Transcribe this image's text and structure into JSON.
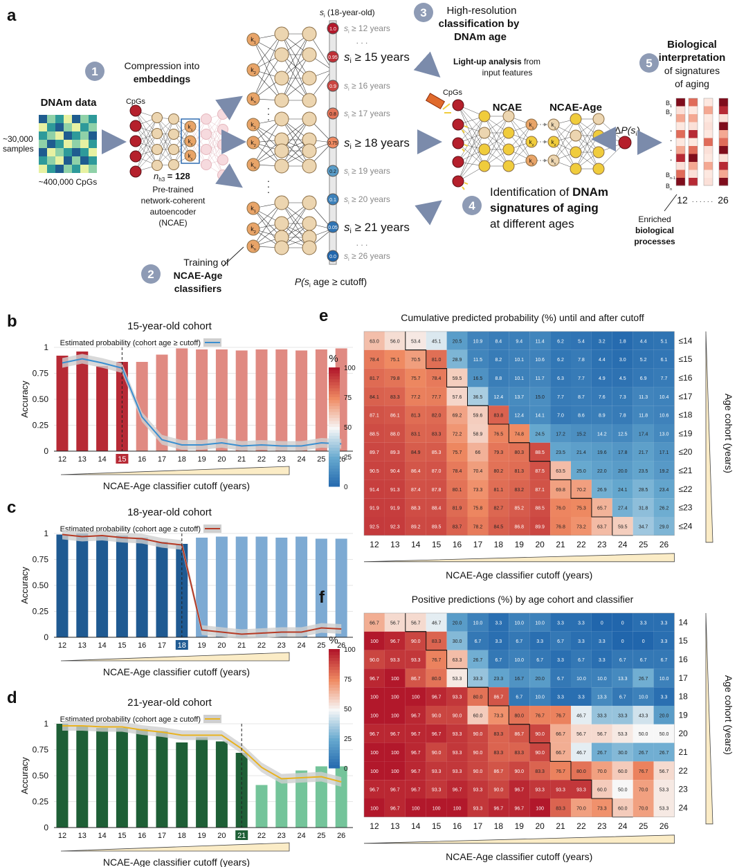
{
  "panel_letters": [
    "a",
    "b",
    "c",
    "d",
    "e",
    "f"
  ],
  "colors": {
    "step_circle": "#8e9bb5",
    "arrow": "#7b8bab",
    "neuron_fill": "#ecd5b0",
    "neuron_stroke": "#8a6d45",
    "emb_fill": "#e8a468",
    "cpg_fill": "#b5202c",
    "lit": "#f0cc3c",
    "red": "#b72a35",
    "red_light": "#e08a82",
    "blue": "#1f5a92",
    "blue_light": "#7daad3",
    "green": "#1e5f36",
    "green_light": "#74c49a",
    "line_b": "#3a8fd0",
    "line_c": "#b53a25",
    "line_d": "#e8b21f",
    "band": "#cfcfcf"
  },
  "panel_a": {
    "dnam_title": "DNAm data",
    "samples": "~30,000",
    "samples2": "samples",
    "cpgs": "~400,000 CpGs",
    "step1": "1",
    "step1_l1": "Compression into",
    "step1_l2": "embeddings",
    "cpgs_label": "CpGs",
    "nh3": "n",
    "nh3_sub": "h3",
    "nh3_val": " = 128",
    "pretrained": [
      "Pre-trained",
      "network-coherent",
      "autoencoder"
    ],
    "ncae_paren": "(NCAE)",
    "step2": "2",
    "step2_l1": "Training of",
    "step2_l2": "NCAE-Age",
    "step2_l3": "classifiers",
    "si_header": "s",
    "si_header_rest": " (18-year-old)",
    "k_labels": [
      "k",
      "k",
      "k"
    ],
    "k_subs": [
      "1",
      "2",
      "n"
    ],
    "cutoffs": [
      {
        "label": "≥ 12 years",
        "prob": "1.0",
        "big": false,
        "show_prob": true
      },
      {
        "label": "≥ 15 years",
        "prob": "0.95",
        "big": true,
        "show_prob": true
      },
      {
        "label": "≥ 16 years",
        "prob": "0.9",
        "big": false,
        "show_prob": true
      },
      {
        "label": "≥ 17 years",
        "prob": "0.8",
        "big": false,
        "show_prob": true
      },
      {
        "label": "≥ 18 years",
        "prob": "0.75",
        "big": true,
        "show_prob": true
      },
      {
        "label": "≥ 19 years",
        "prob": "0.2",
        "big": false,
        "show_prob": true
      },
      {
        "label": "≥ 20 years",
        "prob": "0.1",
        "big": false,
        "show_prob": true
      },
      {
        "label": "≥ 21 years",
        "prob": "0.05",
        "big": true,
        "show_prob": true
      },
      {
        "label": "≥ 26 years",
        "prob": "0.0",
        "big": false,
        "show_prob": true
      }
    ],
    "p_formula": "P(s",
    "p_formula_rest": " age ≥ cutoff)",
    "step3": "3",
    "step3_l1": "High-resolution",
    "step3_l2": "classification by",
    "step3_l3": "DNAm age",
    "lightup_bold": "Light-up analysis",
    "lightup_rest": " from",
    "lightup_l2": "input features",
    "ncae": "NCAE",
    "ncae_age": "NCAE-Age",
    "delta": "ΔP(s",
    "step4": "4",
    "step4_l1": "Identification of ",
    "step4_l1b": "DNAm",
    "step4_l2": "signatures of aging",
    "step4_l3": "at different ages",
    "step5": "5",
    "step5_l1": "Biological",
    "step5_l2": "interpretation",
    "step5_l3": "of signatures",
    "step5_l4": "of aging",
    "b_labels": [
      "B",
      "B",
      "B",
      "B"
    ],
    "b_subs": [
      "1",
      "2",
      "n-1",
      "n"
    ],
    "dots": "· · · · · ·",
    "age_lo": "12",
    "age_hi": "26",
    "enriched": [
      "Enriched",
      "biological",
      "processes"
    ]
  },
  "chart_data": [
    {
      "type": "bar",
      "panel": "b",
      "title": "15-year-old cohort",
      "legend": "Estimated probability (cohort age ≥ cutoff)",
      "ylabel": "Accuracy",
      "xlabel": "NCAE-Age classifier cutoff (years)",
      "categories": [
        "12",
        "13",
        "14",
        "15",
        "16",
        "17",
        "18",
        "19",
        "20",
        "21",
        "22",
        "23",
        "24",
        "25",
        "26"
      ],
      "highlight": "15",
      "ylim": [
        0,
        1.05
      ],
      "yticks": [
        "0",
        "0.25",
        "0.50",
        "0.75",
        "1"
      ],
      "values": [
        0.92,
        0.96,
        0.82,
        0.86,
        0.86,
        0.93,
        0.99,
        0.98,
        0.98,
        0.97,
        0.98,
        0.98,
        0.97,
        0.98,
        0.99
      ],
      "line": [
        0.85,
        0.89,
        0.85,
        0.8,
        0.33,
        0.11,
        0.06,
        0.06,
        0.08,
        0.05,
        0.06,
        0.05,
        0.05,
        0.08,
        0.07
      ]
    },
    {
      "type": "bar",
      "panel": "c",
      "title": "18-year-old cohort",
      "legend": "Estimated probability (cohort age ≥ cutoff)",
      "ylabel": "Accuracy",
      "xlabel": "NCAE-Age classifier cutoff (years)",
      "categories": [
        "12",
        "13",
        "14",
        "15",
        "16",
        "17",
        "18",
        "19",
        "20",
        "21",
        "22",
        "23",
        "24",
        "25",
        "26"
      ],
      "highlight": "18",
      "ylim": [
        0,
        1.05
      ],
      "yticks": [
        "0",
        "0.25",
        "0.50",
        "0.75",
        "1"
      ],
      "values": [
        0.99,
        1.0,
        0.98,
        0.98,
        0.96,
        0.92,
        0.9,
        0.96,
        0.97,
        0.97,
        0.97,
        0.96,
        0.97,
        0.95,
        0.95
      ],
      "line": [
        0.99,
        0.97,
        0.98,
        0.96,
        0.95,
        0.91,
        0.89,
        0.07,
        0.05,
        0.03,
        0.04,
        0.05,
        0.05,
        0.09,
        0.08
      ]
    },
    {
      "type": "bar",
      "panel": "d",
      "title": "21-year-old cohort",
      "legend": "Estimated probability (cohort age ≥ cutoff)",
      "ylabel": "Accuracy",
      "xlabel": "NCAE-Age classifier cutoff (years)",
      "categories": [
        "12",
        "13",
        "14",
        "15",
        "16",
        "17",
        "18",
        "19",
        "20",
        "21",
        "22",
        "23",
        "24",
        "25",
        "26"
      ],
      "highlight": "21",
      "ylim": [
        0,
        1.05
      ],
      "yticks": [
        "0",
        "0.25",
        "0.50",
        "0.75",
        "1"
      ],
      "values": [
        1.0,
        0.98,
        0.96,
        0.96,
        0.95,
        0.93,
        0.82,
        0.87,
        0.83,
        0.72,
        0.41,
        0.48,
        0.55,
        0.59,
        0.59
      ],
      "line": [
        0.98,
        0.98,
        0.97,
        0.97,
        0.94,
        0.92,
        0.89,
        0.89,
        0.89,
        0.76,
        0.58,
        0.47,
        0.48,
        0.49,
        0.44
      ]
    },
    {
      "type": "heatmap",
      "panel": "e",
      "title": "Cumulative predicted probability (%) until and after cutoff",
      "xlabel": "NCAE-Age classifier cutoff (years)",
      "ylabel": "Age cohort (years)",
      "cbar_label": "%",
      "cbar_ticks": [
        "100",
        "75",
        "50",
        "25",
        "0"
      ],
      "x": [
        "12",
        "13",
        "14",
        "15",
        "16",
        "17",
        "18",
        "19",
        "20",
        "21",
        "22",
        "23",
        "24",
        "25",
        "26"
      ],
      "y": [
        "≤14",
        "≤15",
        "≤16",
        "≤17",
        "≤18",
        "≤19",
        "≤20",
        "≤21",
        "≤22",
        "≤23",
        "≤24"
      ],
      "values": [
        [
          "63.0",
          "56.0",
          "53.4",
          "45.1",
          "20.5",
          "10.9",
          "8.4",
          "9.4",
          "11.4",
          "6.2",
          "5.4",
          "3.2",
          "1.8",
          "4.4",
          "5.1"
        ],
        [
          "78.4",
          "75.1",
          "70.5",
          "81.0",
          "28.9",
          "11.5",
          "8.2",
          "10.1",
          "10.6",
          "6.2",
          "7.8",
          "4.4",
          "3.0",
          "5.2",
          "6.1"
        ],
        [
          "81.7",
          "79.8",
          "75.7",
          "78.4",
          "59.5",
          "16.5",
          "8.8",
          "10.1",
          "11.7",
          "6.3",
          "7.7",
          "4.9",
          "4.5",
          "6.9",
          "7.7"
        ],
        [
          "84.1",
          "83.3",
          "77.2",
          "77.7",
          "57.6",
          "36.5",
          "12.4",
          "13.7",
          "15.0",
          "7.7",
          "8.7",
          "7.6",
          "7.3",
          "11.3",
          "10.4"
        ],
        [
          "87.1",
          "86.1",
          "81.3",
          "82.0",
          "69.2",
          "59.6",
          "83.8",
          "12.4",
          "14.1",
          "7.0",
          "8.6",
          "8.9",
          "7.8",
          "11.8",
          "10.6"
        ],
        [
          "88.5",
          "88.0",
          "83.1",
          "83.3",
          "72.2",
          "58.9",
          "76.5",
          "74.8",
          "24.5",
          "17.2",
          "15.2",
          "14.2",
          "12.5",
          "17.4",
          "13.0"
        ],
        [
          "89.7",
          "89.3",
          "84.9",
          "85.3",
          "75.7",
          "66",
          "79.3",
          "80.3",
          "88.5",
          "23.5",
          "21.4",
          "19.6",
          "17.8",
          "21.7",
          "17.1"
        ],
        [
          "90.5",
          "90.4",
          "86.4",
          "87.0",
          "78.4",
          "70.4",
          "80.2",
          "81.3",
          "87.5",
          "63.5",
          "25.0",
          "22.0",
          "20.0",
          "23.5",
          "19.2"
        ],
        [
          "91.4",
          "91.3",
          "87.4",
          "87.8",
          "80.1",
          "73.3",
          "81.1",
          "83.2",
          "87.1",
          "69.8",
          "70.2",
          "26.9",
          "24.1",
          "28.5",
          "23.4"
        ],
        [
          "91.9",
          "91.9",
          "88.3",
          "88.4",
          "81.9",
          "75.8",
          "82.7",
          "85.2",
          "88.5",
          "76.0",
          "75.3",
          "65.7",
          "27.4",
          "31.8",
          "26.2"
        ],
        [
          "92.5",
          "92.3",
          "89.2",
          "89.5",
          "83.7",
          "78.2",
          "84.5",
          "86.8",
          "89.9",
          "76.8",
          "73.2",
          "63.7",
          "59.5",
          "34.7",
          "29.0"
        ]
      ]
    },
    {
      "type": "heatmap",
      "panel": "f",
      "title": "Positive predictions (%) by age cohort and classifier",
      "xlabel": "NCAE-Age classifier cutoff (years)",
      "ylabel": "Age cohort (years)",
      "cbar_label": "%",
      "cbar_ticks": [
        "100",
        "75",
        "50",
        "25",
        "0"
      ],
      "x": [
        "12",
        "13",
        "14",
        "15",
        "16",
        "17",
        "18",
        "19",
        "20",
        "21",
        "22",
        "23",
        "24",
        "25",
        "26"
      ],
      "y": [
        "14",
        "15",
        "16",
        "17",
        "18",
        "19",
        "20",
        "21",
        "22",
        "23",
        "24"
      ],
      "values": [
        [
          "66.7",
          "56.7",
          "56.7",
          "46.7",
          "20.0",
          "10.0",
          "3.3",
          "10.0",
          "10.0",
          "3.3",
          "3.3",
          "0",
          "0",
          "3.3",
          "3.3"
        ],
        [
          "100",
          "96.7",
          "90.0",
          "83.3",
          "30.0",
          "6.7",
          "3.3",
          "6.7",
          "3.3",
          "6.7",
          "3.3",
          "3.3",
          "0",
          "0",
          "3.3"
        ],
        [
          "90.0",
          "93.3",
          "93.3",
          "76.7",
          "63.3",
          "26.7",
          "6.7",
          "10.0",
          "6.7",
          "3.3",
          "6.7",
          "3.3",
          "6.7",
          "6.7",
          "6.7"
        ],
        [
          "96.7",
          "100",
          "86.7",
          "80.0",
          "53.3",
          "33.3",
          "23.3",
          "16.7",
          "20.0",
          "6.7",
          "10.0",
          "10.0",
          "13.3",
          "26.7",
          "10.0"
        ],
        [
          "100",
          "100",
          "100",
          "96.7",
          "93.3",
          "80.0",
          "86.7",
          "6.7",
          "10.0",
          "3.3",
          "3.3",
          "13.3",
          "6.7",
          "10.0",
          "3.3"
        ],
        [
          "100",
          "100",
          "96.7",
          "90.0",
          "90.0",
          "60.0",
          "73.3",
          "80.0",
          "76.7",
          "76.7",
          "46.7",
          "33.3",
          "33.3",
          "43.3",
          "20.0"
        ],
        [
          "96.7",
          "96.7",
          "96.7",
          "96.7",
          "93.3",
          "90.0",
          "83.3",
          "86.7",
          "90.0",
          "66.7",
          "56.7",
          "56.7",
          "53.3",
          "50.0",
          "50.0"
        ],
        [
          "100",
          "100",
          "96.7",
          "90.0",
          "93.3",
          "90.0",
          "83.3",
          "83.3",
          "90.0",
          "66.7",
          "46.7",
          "26.7",
          "30.0",
          "26.7",
          "26.7"
        ],
        [
          "100",
          "100",
          "96.7",
          "93.3",
          "93.3",
          "90.0",
          "86.7",
          "90.0",
          "83.3",
          "76.7",
          "80.0",
          "70.0",
          "60.0",
          "76.7",
          "56.7"
        ],
        [
          "96.7",
          "96.7",
          "96.7",
          "93.3",
          "96.7",
          "93.3",
          "90.0",
          "96.7",
          "93.3",
          "93.3",
          "93.3",
          "60.0",
          "50.0",
          "70.0",
          "53.3"
        ],
        [
          "100",
          "96.7",
          "100",
          "100",
          "100",
          "93.3",
          "96.7",
          "96.7",
          "100",
          "83.3",
          "70.0",
          "73.3",
          "60.0",
          "70.0",
          "53.3"
        ]
      ]
    }
  ]
}
